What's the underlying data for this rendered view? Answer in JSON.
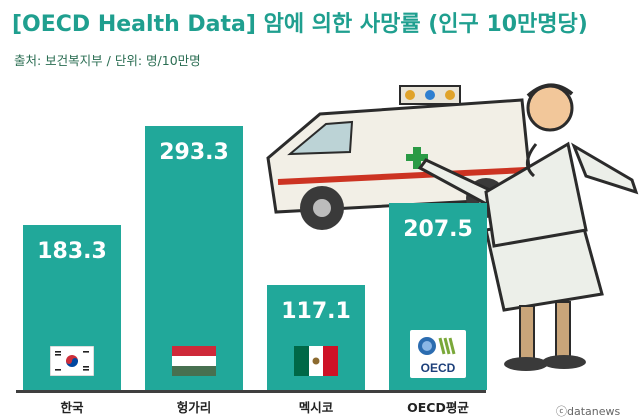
{
  "header": {
    "title": "[OECD Health Data] 암에 의한 사망률 (인구 10만명당)",
    "subtitle": "출처: 보건복지부 / 단위: 명/10만명"
  },
  "chart_data": {
    "type": "bar",
    "categories": [
      "한국",
      "헝가리",
      "멕시코",
      "OECD평균"
    ],
    "values": [
      183.3,
      293.3,
      117.1,
      207.5
    ],
    "value_labels": [
      "183.3",
      "293.3",
      "117.1",
      "207.5"
    ],
    "title": "[OECD Health Data] 암에 의한 사망률 (인구 10만명당)",
    "unit": "명/10만명",
    "source": "보건복지부",
    "bar_color": "#21a89a",
    "grid": false,
    "legend": "none",
    "icons": [
      "south-korea-flag",
      "hungary-flag",
      "mexico-flag",
      "oecd-logo"
    ]
  },
  "oecd_logo_text": "OECD",
  "credit": "ⓒdatanews"
}
